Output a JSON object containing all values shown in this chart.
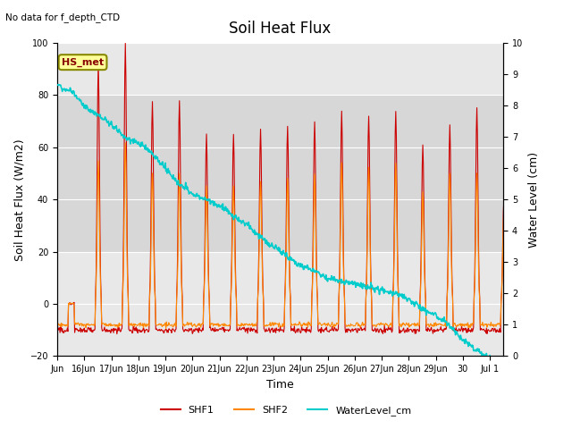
{
  "title": "Soil Heat Flux",
  "subtitle": "No data for f_depth_CTD",
  "xlabel": "Time",
  "ylabel_left": "Soil Heat Flux (W/m2)",
  "ylabel_right": "Water Level (cm)",
  "ylim_left": [
    -20,
    100
  ],
  "ylim_right": [
    0.0,
    10.0
  ],
  "yticks_left": [
    -20,
    0,
    20,
    40,
    60,
    80,
    100
  ],
  "yticks_right": [
    0.0,
    1.0,
    2.0,
    3.0,
    4.0,
    5.0,
    6.0,
    7.0,
    8.0,
    9.0,
    10.0
  ],
  "xtick_labels": [
    "Jun",
    "16Jun",
    "17Jun",
    "18Jun",
    "19Jun",
    "20Jun",
    "21Jun",
    "22Jun",
    "23Jun",
    "24Jun",
    "25Jun",
    "26Jun",
    "27Jun",
    "28Jun",
    "29Jun",
    "30",
    "Jul 1"
  ],
  "shf1_color": "#cc0000",
  "shf2_color": "#ff8800",
  "water_color": "#00cccc",
  "bg_light": "#e8e8e8",
  "bg_mid": "#d8d8d8",
  "annotation_box_text": "HS_met",
  "annotation_box_facecolor": "#ffff99",
  "annotation_box_edgecolor": "#888800",
  "grid_color": "#ffffff",
  "title_fontsize": 12,
  "axis_label_fontsize": 9,
  "tick_fontsize": 7
}
